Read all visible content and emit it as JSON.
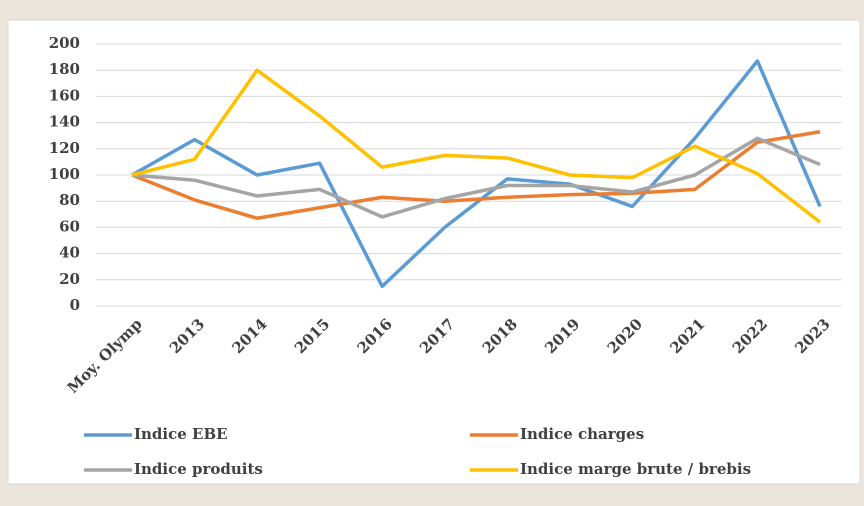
{
  "chart_data": {
    "type": "line",
    "categories": [
      "Moy. Olymp",
      "2013",
      "2014",
      "2015",
      "2016",
      "2017",
      "2018",
      "2019",
      "2020",
      "2021",
      "2022",
      "2023"
    ],
    "series": [
      {
        "name": "Indice EBE",
        "color": "#5b9bd5",
        "values": [
          100,
          127,
          100,
          109,
          15,
          60,
          97,
          93,
          76,
          128,
          187,
          76
        ]
      },
      {
        "name": "Indice charges",
        "color": "#ed7d31",
        "values": [
          100,
          81,
          67,
          75,
          83,
          80,
          83,
          85,
          86,
          89,
          125,
          133
        ]
      },
      {
        "name": "Indice produits",
        "color": "#a5a5a5",
        "values": [
          100,
          96,
          84,
          89,
          68,
          82,
          92,
          92,
          87,
          100,
          128,
          108
        ]
      },
      {
        "name": "Indice marge brute / brebis",
        "color": "#ffc000",
        "values": [
          100,
          112,
          180,
          145,
          106,
          115,
          113,
          100,
          98,
          122,
          101,
          64
        ]
      }
    ],
    "ylim": [
      0,
      200
    ],
    "yticks": [
      0,
      20,
      40,
      60,
      80,
      100,
      120,
      140,
      160,
      180,
      200
    ],
    "grid": true,
    "legend": "bottom"
  }
}
